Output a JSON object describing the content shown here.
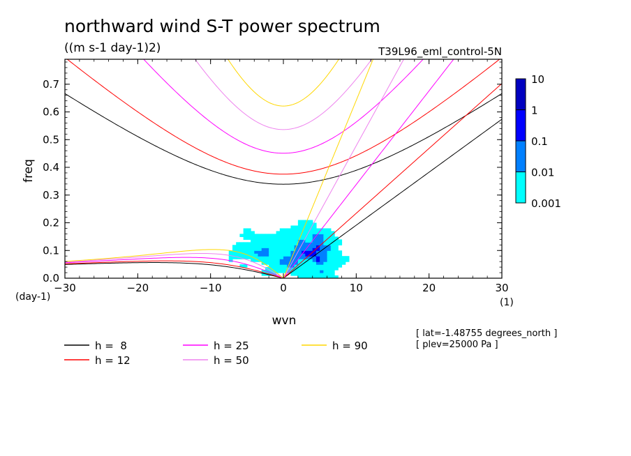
{
  "chart_data": {
    "type": "heatmap",
    "title": "northward wind S-T power spectrum",
    "subtitle": "((m s-1 day-1)2)",
    "dataset_label": "T39L96_eml_control-5N",
    "xlabel": "wvn",
    "ylabel": "freq",
    "x_unit": "(1)",
    "y_unit": "(day-1)",
    "xlim": [
      -30,
      30
    ],
    "ylim": [
      0,
      0.79
    ],
    "xticks": [
      "-30",
      "-20",
      "-10",
      "0",
      "10",
      "20",
      "30"
    ],
    "yticks": [
      "0.0",
      "0.1",
      "0.2",
      "0.3",
      "0.4",
      "0.5",
      "0.6",
      "0.7"
    ],
    "colorbar": {
      "levels": [
        "0.001",
        "0.01",
        "0.1",
        "1",
        "10"
      ],
      "colors": [
        "#00ffff",
        "#0080ff",
        "#0000ff",
        "#0000c0",
        "#5a10c0"
      ]
    },
    "series": [
      {
        "name": "h =  8",
        "color": "#000000"
      },
      {
        "name": "h = 12",
        "color": "#ff0000"
      },
      {
        "name": "h = 25",
        "color": "#ff00ff"
      },
      {
        "name": "h = 50",
        "color": "#ee82ee"
      },
      {
        "name": "h = 90",
        "color": "#ffd700"
      }
    ],
    "annotations": [
      "[ lat=-1.48755 degrees_north ]",
      "[ plev=25000 Pa ]"
    ]
  }
}
